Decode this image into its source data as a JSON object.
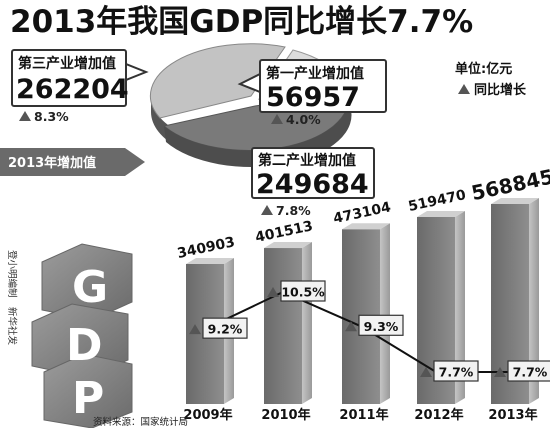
{
  "title": "2013年我国GDP同比增长7.7%",
  "legend": {
    "unit": "单位:亿元",
    "growth_label": "同比增长"
  },
  "credit": "登小明编制　新华社发",
  "source": "资料来源：国家统计局",
  "logo_letters": [
    "G",
    "D",
    "P"
  ],
  "pie": {
    "banner": "2013年增加值",
    "segments": [
      {
        "label": "第三产业增加值",
        "value": "262204",
        "growth": "8.3%"
      },
      {
        "label": "第一产业增加值",
        "value": "56957",
        "growth": "4.0%"
      },
      {
        "label": "第二产业增加值",
        "value": "249684",
        "growth": "7.8%"
      }
    ]
  },
  "colors": {
    "bar_front": "#7c7c7c",
    "bar_side": "#b2b2b2",
    "bar_top": "#d0d0d0",
    "text": "#111111"
  },
  "chart_data": [
    {
      "type": "pie",
      "title": "2013年增加值",
      "labels": [
        "第一产业增加值",
        "第二产业增加值",
        "第三产业增加值"
      ],
      "values": [
        56957,
        249684,
        262204
      ],
      "growth_pct": [
        4.0,
        7.8,
        8.3
      ]
    },
    {
      "type": "bar",
      "categories": [
        "2009年",
        "2010年",
        "2011年",
        "2012年",
        "2013年"
      ],
      "series": [
        {
          "name": "",
          "values": [
            340903,
            401513,
            473104,
            519470,
            568845
          ]
        },
        {
          "name": "同比增长",
          "values": [
            9.2,
            10.5,
            9.3,
            7.7,
            7.7
          ],
          "labels": [
            "9.2%",
            "10.5%",
            "9.3%",
            "7.7%",
            "7.7%"
          ]
        }
      ],
      "ylim": [
        0,
        600000
      ]
    }
  ]
}
